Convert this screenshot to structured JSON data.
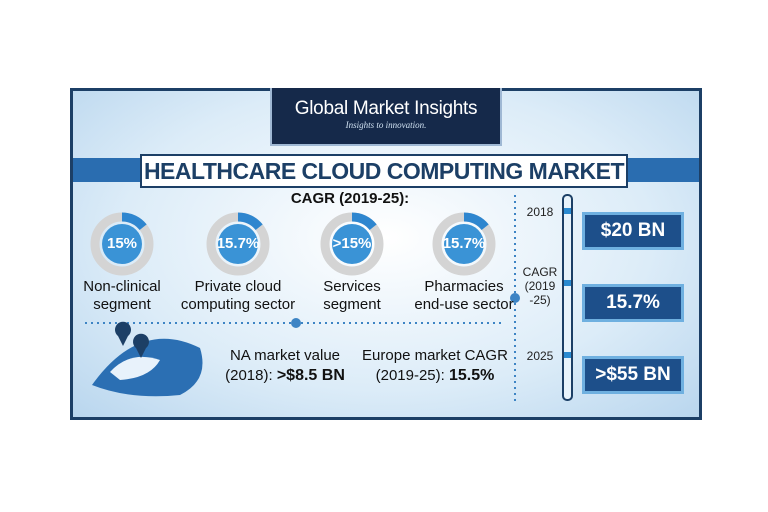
{
  "header": {
    "brand": "Global Market Insights",
    "tagline": "Insights to innovation."
  },
  "title": "HEALTHCARE CLOUD COMPUTING MARKET",
  "cagr_heading": "CAGR (2019-25):",
  "segments": [
    {
      "value": "15%",
      "label": [
        "Non-clinical",
        "segment"
      ]
    },
    {
      "value": "15.7%",
      "label": [
        "Private cloud",
        "computing sector"
      ]
    },
    {
      "value": ">15%",
      "label": [
        "Services",
        "segment"
      ]
    },
    {
      "value": "15.7%",
      "label": [
        "Pharmacies",
        "end-use sector"
      ]
    }
  ],
  "regional": [
    {
      "label": "NA market value",
      "period": "(2018):",
      "value": ">$8.5 BN"
    },
    {
      "label": "Europe market CAGR",
      "period": "(2019-25):",
      "value": "15.5%"
    }
  ],
  "timeline": [
    {
      "label": [
        "2018"
      ],
      "value": "$20 BN"
    },
    {
      "label": [
        "CAGR",
        "(2019",
        "-25)"
      ],
      "value": "15.7%"
    },
    {
      "label": [
        "2025"
      ],
      "value": ">$55 BN"
    }
  ]
}
